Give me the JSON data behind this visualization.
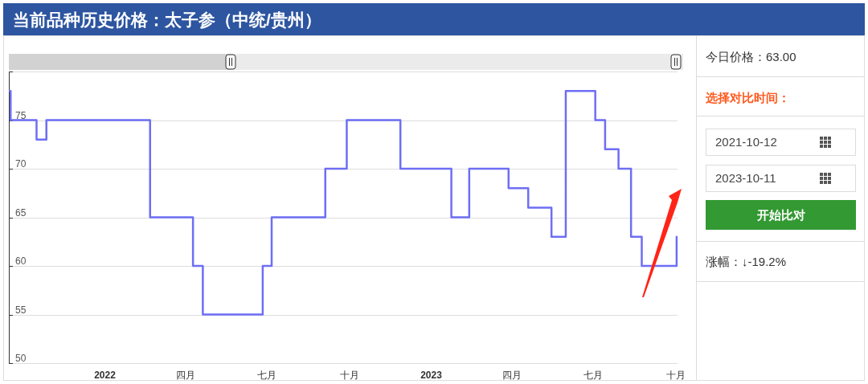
{
  "chart_data": {
    "type": "step",
    "title": "当前品种历史价格：太子参（中统/贵州）",
    "x": [
      "2021-09-17",
      "2021-09-18",
      "2021-10-17",
      "2021-10-28",
      "2022-02-21",
      "2022-04-10",
      "2022-04-21",
      "2022-06-27",
      "2022-07-07",
      "2022-09-05",
      "2022-09-29",
      "2022-11-28",
      "2023-01-24",
      "2023-02-13",
      "2023-03-29",
      "2023-04-20",
      "2023-05-16",
      "2023-06-01",
      "2023-07-04",
      "2023-07-15",
      "2023-07-30",
      "2023-08-13",
      "2023-08-25",
      "2023-10-03"
    ],
    "series": [
      {
        "color": "#6e6ef5",
        "values": [
          78,
          75,
          73,
          75,
          65,
          60,
          55,
          60,
          65,
          70,
          75,
          70,
          65,
          70,
          68,
          66,
          63,
          78,
          75,
          72,
          70,
          63,
          60,
          63
        ]
      }
    ],
    "xlim": [
      "2021-09-16",
      "2023-10-04"
    ],
    "xticks": [
      {
        "value": "2022-01-01",
        "label": "2022"
      },
      {
        "value": "2022-04-01",
        "label": "四月"
      },
      {
        "value": "2022-07-01",
        "label": "七月"
      },
      {
        "value": "2022-10-01",
        "label": "十月"
      },
      {
        "value": "2023-01-01",
        "label": "2023"
      },
      {
        "value": "2023-04-01",
        "label": "四月"
      },
      {
        "value": "2023-07-01",
        "label": "七月"
      },
      {
        "value": "2023-10-01",
        "label": "十月"
      }
    ],
    "ylim": [
      50,
      80
    ],
    "yticks": [
      50,
      55,
      60,
      65,
      70,
      75,
      {
        "value": 80,
        "label": null
      }
    ],
    "grid": "y",
    "marker": "none",
    "line_style": "solid",
    "annotations": [
      "今日价格：63.00",
      "选择对比时间：",
      "2021-10-12",
      "2023-10-11",
      "开始比对",
      "涨幅：↓-19.2%"
    ]
  }
}
